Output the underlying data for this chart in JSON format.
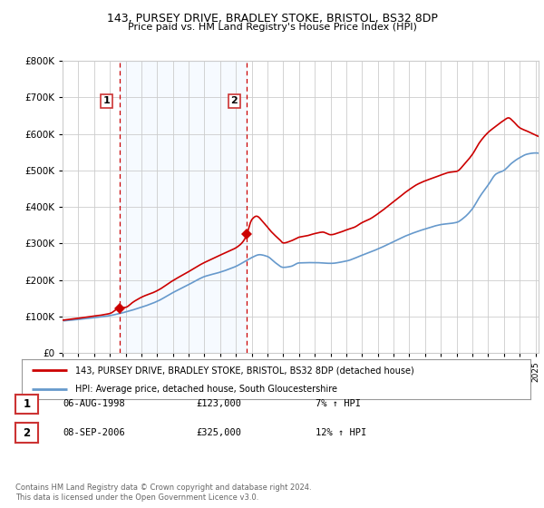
{
  "title": "143, PURSEY DRIVE, BRADLEY STOKE, BRISTOL, BS32 8DP",
  "subtitle": "Price paid vs. HM Land Registry's House Price Index (HPI)",
  "legend_line1": "143, PURSEY DRIVE, BRADLEY STOKE, BRISTOL, BS32 8DP (detached house)",
  "legend_line2": "HPI: Average price, detached house, South Gloucestershire",
  "purchase1_label": "1",
  "purchase1_date": "06-AUG-1998",
  "purchase1_price": "£123,000",
  "purchase1_hpi": "7% ↑ HPI",
  "purchase1_year": 1998.6,
  "purchase1_value": 123000,
  "purchase2_label": "2",
  "purchase2_date": "08-SEP-2006",
  "purchase2_price": "£325,000",
  "purchase2_hpi": "12% ↑ HPI",
  "purchase2_year": 2006.69,
  "purchase2_value": 325000,
  "footer": "Contains HM Land Registry data © Crown copyright and database right 2024.\nThis data is licensed under the Open Government Licence v3.0.",
  "red_color": "#cc0000",
  "blue_color": "#6699cc",
  "shade_color": "#ddeeff",
  "dashed_color": "#cc0000",
  "background_color": "#ffffff",
  "grid_color": "#cccccc",
  "ylim": [
    0,
    800000
  ],
  "xlim_start": 1995.0,
  "xlim_end": 2025.2
}
